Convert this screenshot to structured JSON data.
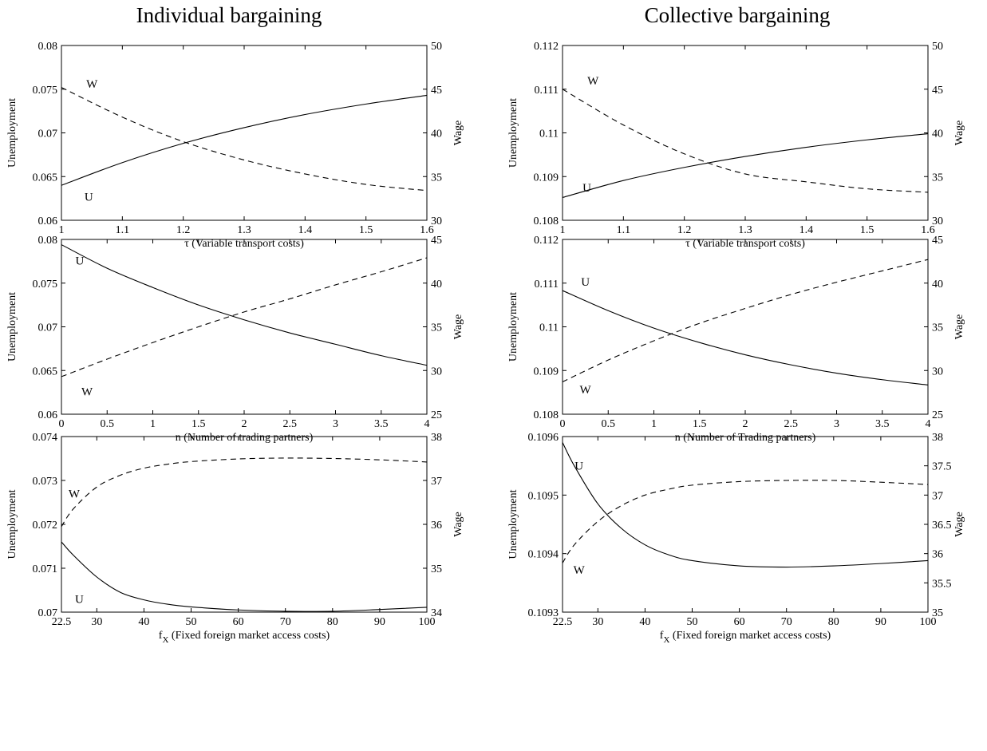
{
  "figure": {
    "column_titles": [
      "Individual bargaining",
      "Collective bargaining"
    ]
  },
  "chart_data": [
    {
      "type": "line",
      "column": "Individual bargaining",
      "xlabel": "τ (Variable transport costs)",
      "ylabel_left": "Unemployment",
      "ylabel_right": "Wage",
      "xlim": [
        1,
        1.6
      ],
      "ylim_left": [
        0.06,
        0.08
      ],
      "ylim_right": [
        30,
        50
      ],
      "xticks": [
        "1",
        "1.1",
        "1.2",
        "1.3",
        "1.4",
        "1.5",
        "1.6"
      ],
      "yticks_left": [
        "0.06",
        "0.065",
        "0.07",
        "0.075",
        "0.08"
      ],
      "yticks_right": [
        "30",
        "35",
        "40",
        "45",
        "50"
      ],
      "series": [
        {
          "name": "U",
          "axis": "left",
          "style": "solid",
          "x": [
            1,
            1.1,
            1.2,
            1.3,
            1.4,
            1.5,
            1.6
          ],
          "y": [
            0.064,
            0.0666,
            0.0688,
            0.0706,
            0.0721,
            0.0733,
            0.0743
          ]
        },
        {
          "name": "W",
          "axis": "right",
          "style": "dashed",
          "x": [
            1,
            1.1,
            1.2,
            1.3,
            1.4,
            1.5,
            1.6
          ],
          "y": [
            45.2,
            41.8,
            39.0,
            36.9,
            35.3,
            34.1,
            33.4
          ]
        }
      ],
      "curve_labels": [
        {
          "text": "W",
          "x": 1.05,
          "y_left": 0.0756
        },
        {
          "text": "U",
          "x": 1.045,
          "y_left": 0.0627
        }
      ]
    },
    {
      "type": "line",
      "column": "Collective bargaining",
      "xlabel": "τ (Variable transport costs)",
      "ylabel_left": "Unemployment",
      "ylabel_right": "Wage",
      "xlim": [
        1,
        1.6
      ],
      "ylim_left": [
        0.108,
        0.112
      ],
      "ylim_right": [
        30,
        50
      ],
      "xticks": [
        "1",
        "1.1",
        "1.2",
        "1.3",
        "1.4",
        "1.5",
        "1.6"
      ],
      "yticks_left": [
        "0.108",
        "0.109",
        "0.11",
        "0.111",
        "0.112"
      ],
      "yticks_right": [
        "30",
        "35",
        "40",
        "45",
        "50"
      ],
      "series": [
        {
          "name": "U",
          "axis": "left",
          "style": "solid",
          "x": [
            1,
            1.1,
            1.2,
            1.3,
            1.4,
            1.5,
            1.6
          ],
          "y": [
            0.10852,
            0.10891,
            0.10921,
            0.10946,
            0.10967,
            0.10984,
            0.10998
          ]
        },
        {
          "name": "W",
          "axis": "right",
          "style": "dashed",
          "x": [
            1,
            1.1,
            1.2,
            1.3,
            1.4,
            1.5,
            1.6
          ],
          "y": [
            45.0,
            40.9,
            37.6,
            35.3,
            34.4,
            33.6,
            33.2
          ]
        }
      ],
      "curve_labels": [
        {
          "text": "W",
          "x": 1.05,
          "y_left": 0.1112
        },
        {
          "text": "U",
          "x": 1.04,
          "y_left": 0.10875
        }
      ]
    },
    {
      "type": "line",
      "column": "Individual bargaining",
      "xlabel": "n (Number of trading partners)",
      "ylabel_left": "Unemployment",
      "ylabel_right": "Wage",
      "xlim": [
        0,
        4
      ],
      "ylim_left": [
        0.06,
        0.08
      ],
      "ylim_right": [
        25,
        45
      ],
      "xticks": [
        "0",
        "0.5",
        "1",
        "1.5",
        "2",
        "2.5",
        "3",
        "3.5",
        "4"
      ],
      "yticks_left": [
        "0.06",
        "0.065",
        "0.07",
        "0.075",
        "0.08"
      ],
      "yticks_right": [
        "25",
        "30",
        "35",
        "40",
        "45"
      ],
      "series": [
        {
          "name": "U",
          "axis": "left",
          "style": "solid",
          "x": [
            0,
            0.5,
            1,
            1.5,
            2,
            2.5,
            3,
            3.5,
            4
          ],
          "y": [
            0.0794,
            0.0767,
            0.0745,
            0.0725,
            0.0708,
            0.0693,
            0.068,
            0.0667,
            0.0656
          ]
        },
        {
          "name": "W",
          "axis": "right",
          "style": "dashed",
          "x": [
            0,
            0.5,
            1,
            1.5,
            2,
            2.5,
            3,
            3.5,
            4
          ],
          "y": [
            29.3,
            31.3,
            33.2,
            35.0,
            36.7,
            38.2,
            39.8,
            41.3,
            42.9
          ]
        }
      ],
      "curve_labels": [
        {
          "text": "U",
          "x": 0.2,
          "y_left": 0.0776
        },
        {
          "text": "W",
          "x": 0.28,
          "y_left": 0.0626
        }
      ]
    },
    {
      "type": "line",
      "column": "Collective bargaining",
      "xlabel": "n (Number of Trading partners)",
      "ylabel_left": "Unemployment",
      "ylabel_right": "Wage",
      "xlim": [
        0,
        4
      ],
      "ylim_left": [
        0.108,
        0.112
      ],
      "ylim_right": [
        25,
        45
      ],
      "xticks": [
        "0",
        "0.5",
        "1",
        "1.5",
        "2",
        "2.5",
        "3",
        "3.5",
        "4"
      ],
      "yticks_left": [
        "0.108",
        "0.109",
        "0.11",
        "0.111",
        "0.112"
      ],
      "yticks_right": [
        "25",
        "30",
        "35",
        "40",
        "45"
      ],
      "series": [
        {
          "name": "U",
          "axis": "left",
          "style": "solid",
          "x": [
            0,
            0.5,
            1,
            1.5,
            2,
            2.5,
            3,
            3.5,
            4
          ],
          "y": [
            0.11083,
            0.11037,
            0.10997,
            0.10964,
            0.10936,
            0.10913,
            0.10894,
            0.10879,
            0.10867
          ]
        },
        {
          "name": "W",
          "axis": "right",
          "style": "dashed",
          "x": [
            0,
            0.5,
            1,
            1.5,
            2,
            2.5,
            3,
            3.5,
            4
          ],
          "y": [
            28.7,
            31.2,
            33.4,
            35.4,
            37.1,
            38.7,
            40.1,
            41.4,
            42.7
          ]
        }
      ],
      "curve_labels": [
        {
          "text": "U",
          "x": 0.25,
          "y_left": 0.11103
        },
        {
          "text": "W",
          "x": 0.25,
          "y_left": 0.10857
        }
      ]
    },
    {
      "type": "line",
      "column": "Individual bargaining",
      "xlabel": "f_X (Fixed foreign market access costs)",
      "ylabel_left": "Unemployment",
      "ylabel_right": "Wage",
      "xlim": [
        22.5,
        100
      ],
      "ylim_left": [
        0.07,
        0.074
      ],
      "ylim_right": [
        34,
        38
      ],
      "xticks": [
        "22.5",
        "30",
        "40",
        "50",
        "60",
        "70",
        "80",
        "90",
        "100"
      ],
      "yticks_left": [
        "0.07",
        "0.071",
        "0.072",
        "0.073",
        "0.074"
      ],
      "yticks_right": [
        "34",
        "35",
        "36",
        "37",
        "38"
      ],
      "series": [
        {
          "name": "U",
          "axis": "left",
          "style": "solid",
          "x": [
            22.5,
            25,
            30,
            35,
            40,
            45,
            50,
            60,
            70,
            80,
            90,
            100
          ],
          "y": [
            0.0716,
            0.0713,
            0.0708,
            0.07045,
            0.07028,
            0.07018,
            0.07012,
            0.07005,
            0.07002,
            0.07002,
            0.07006,
            0.07011
          ]
        },
        {
          "name": "W",
          "axis": "right",
          "style": "dashed",
          "x": [
            22.5,
            25,
            30,
            35,
            40,
            45,
            50,
            60,
            70,
            80,
            90,
            100
          ],
          "y": [
            35.95,
            36.35,
            36.85,
            37.12,
            37.28,
            37.37,
            37.43,
            37.49,
            37.51,
            37.5,
            37.47,
            37.42
          ]
        }
      ],
      "curve_labels": [
        {
          "text": "W",
          "x": 25.2,
          "y_left": 0.0727
        },
        {
          "text": "U",
          "x": 26.3,
          "y_left": 0.0703
        }
      ]
    },
    {
      "type": "line",
      "column": "Collective bargaining",
      "xlabel": "f_X (Fixed foreign market access costs)",
      "ylabel_left": "Unemployment",
      "ylabel_right": "Wage",
      "xlim": [
        22.5,
        100
      ],
      "ylim_left": [
        0.1093,
        0.1096
      ],
      "ylim_right": [
        35,
        38
      ],
      "xticks": [
        "22.5",
        "30",
        "40",
        "50",
        "60",
        "70",
        "80",
        "90",
        "100"
      ],
      "yticks_left": [
        "0.1093",
        "0.1094",
        "0.1095",
        "0.1096"
      ],
      "yticks_right": [
        "35",
        "35.5",
        "36",
        "36.5",
        "37",
        "37.5",
        "38"
      ],
      "series": [
        {
          "name": "U",
          "axis": "left",
          "style": "solid",
          "x": [
            22.5,
            25,
            30,
            35,
            40,
            45,
            50,
            60,
            70,
            80,
            90,
            100
          ],
          "y": [
            0.10959,
            0.10955,
            0.109485,
            0.109443,
            0.109415,
            0.109398,
            0.109388,
            0.109379,
            0.109377,
            0.109379,
            0.109383,
            0.109388
          ]
        },
        {
          "name": "W",
          "axis": "right",
          "style": "dashed",
          "x": [
            22.5,
            25,
            30,
            35,
            40,
            45,
            50,
            60,
            70,
            80,
            90,
            100
          ],
          "y": [
            35.84,
            36.15,
            36.55,
            36.82,
            37.0,
            37.1,
            37.17,
            37.23,
            37.25,
            37.25,
            37.22,
            37.18
          ]
        }
      ],
      "curve_labels": [
        {
          "text": "U",
          "x": 26,
          "y_left": 0.10955
        },
        {
          "text": "W",
          "x": 26,
          "y_left": 0.109372
        }
      ]
    }
  ]
}
